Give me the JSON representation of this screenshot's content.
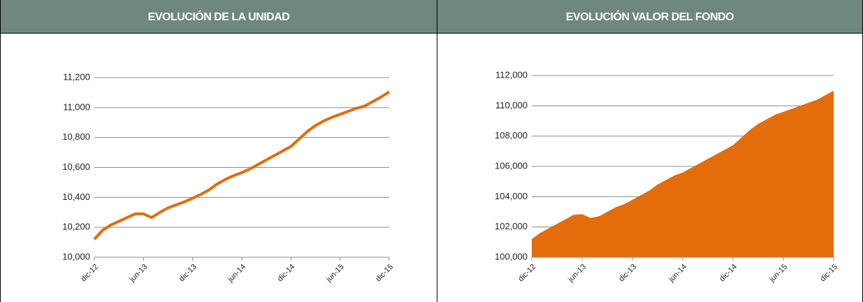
{
  "chart_data": [
    {
      "type": "line",
      "title": "EVOLUCIÓN DE LA UNIDAD",
      "color": "#e46c0a",
      "grid": true,
      "categories": [
        "dic-12",
        null,
        null,
        null,
        null,
        null,
        "jun-13",
        null,
        null,
        null,
        null,
        null,
        "dic-13",
        null,
        null,
        null,
        null,
        null,
        "jun-14",
        null,
        null,
        null,
        null,
        null,
        "dic-14",
        null,
        null,
        null,
        null,
        null,
        "jun-15",
        null,
        null,
        null,
        null,
        null,
        "dic-15"
      ],
      "values": [
        10120,
        10180,
        10215,
        10240,
        10265,
        10290,
        10290,
        10265,
        10300,
        10330,
        10350,
        10370,
        10395,
        10420,
        10450,
        10490,
        10520,
        10545,
        10565,
        10590,
        10620,
        10650,
        10680,
        10710,
        10740,
        10790,
        10840,
        10880,
        10910,
        10935,
        10955,
        10975,
        10995,
        11010,
        11040,
        11070,
        11105
      ],
      "ylim": [
        10000,
        11200
      ],
      "yticks": [
        {
          "value": 10000,
          "label": "10,000"
        },
        {
          "value": 10200,
          "label": "10,200"
        },
        {
          "value": 10400,
          "label": "10,400"
        },
        {
          "value": 10600,
          "label": "10,600"
        },
        {
          "value": 10800,
          "label": "10,800"
        },
        {
          "value": 11000,
          "label": "11,000"
        },
        {
          "value": 11200,
          "label": "11,200"
        }
      ]
    },
    {
      "type": "area",
      "title": "EVOLUCIÓN VALOR DEL FONDO",
      "color": "#e46c0a",
      "grid": true,
      "categories": [
        "dic-12",
        null,
        null,
        null,
        null,
        null,
        "jun-13",
        null,
        null,
        null,
        null,
        null,
        "dic-13",
        null,
        null,
        null,
        null,
        null,
        "jun-14",
        null,
        null,
        null,
        null,
        null,
        "dic-14",
        null,
        null,
        null,
        null,
        null,
        "jun-15",
        null,
        null,
        null,
        null,
        null,
        "dic-15"
      ],
      "values": [
        101200,
        101600,
        101900,
        102200,
        102500,
        102800,
        102850,
        102600,
        102700,
        103000,
        103300,
        103500,
        103800,
        104100,
        104400,
        104800,
        105100,
        105400,
        105600,
        105900,
        106200,
        106500,
        106800,
        107100,
        107400,
        107900,
        108400,
        108800,
        109100,
        109400,
        109600,
        109800,
        110000,
        110200,
        110400,
        110700,
        111000
      ],
      "ylim": [
        100000,
        112000
      ],
      "yticks": [
        {
          "value": 100000,
          "label": "100,000"
        },
        {
          "value": 102000,
          "label": "102,000"
        },
        {
          "value": 104000,
          "label": "104,000"
        },
        {
          "value": 106000,
          "label": "106,000"
        },
        {
          "value": 108000,
          "label": "108,000"
        },
        {
          "value": 110000,
          "label": "110,000"
        },
        {
          "value": 112000,
          "label": "112,000"
        }
      ]
    }
  ]
}
